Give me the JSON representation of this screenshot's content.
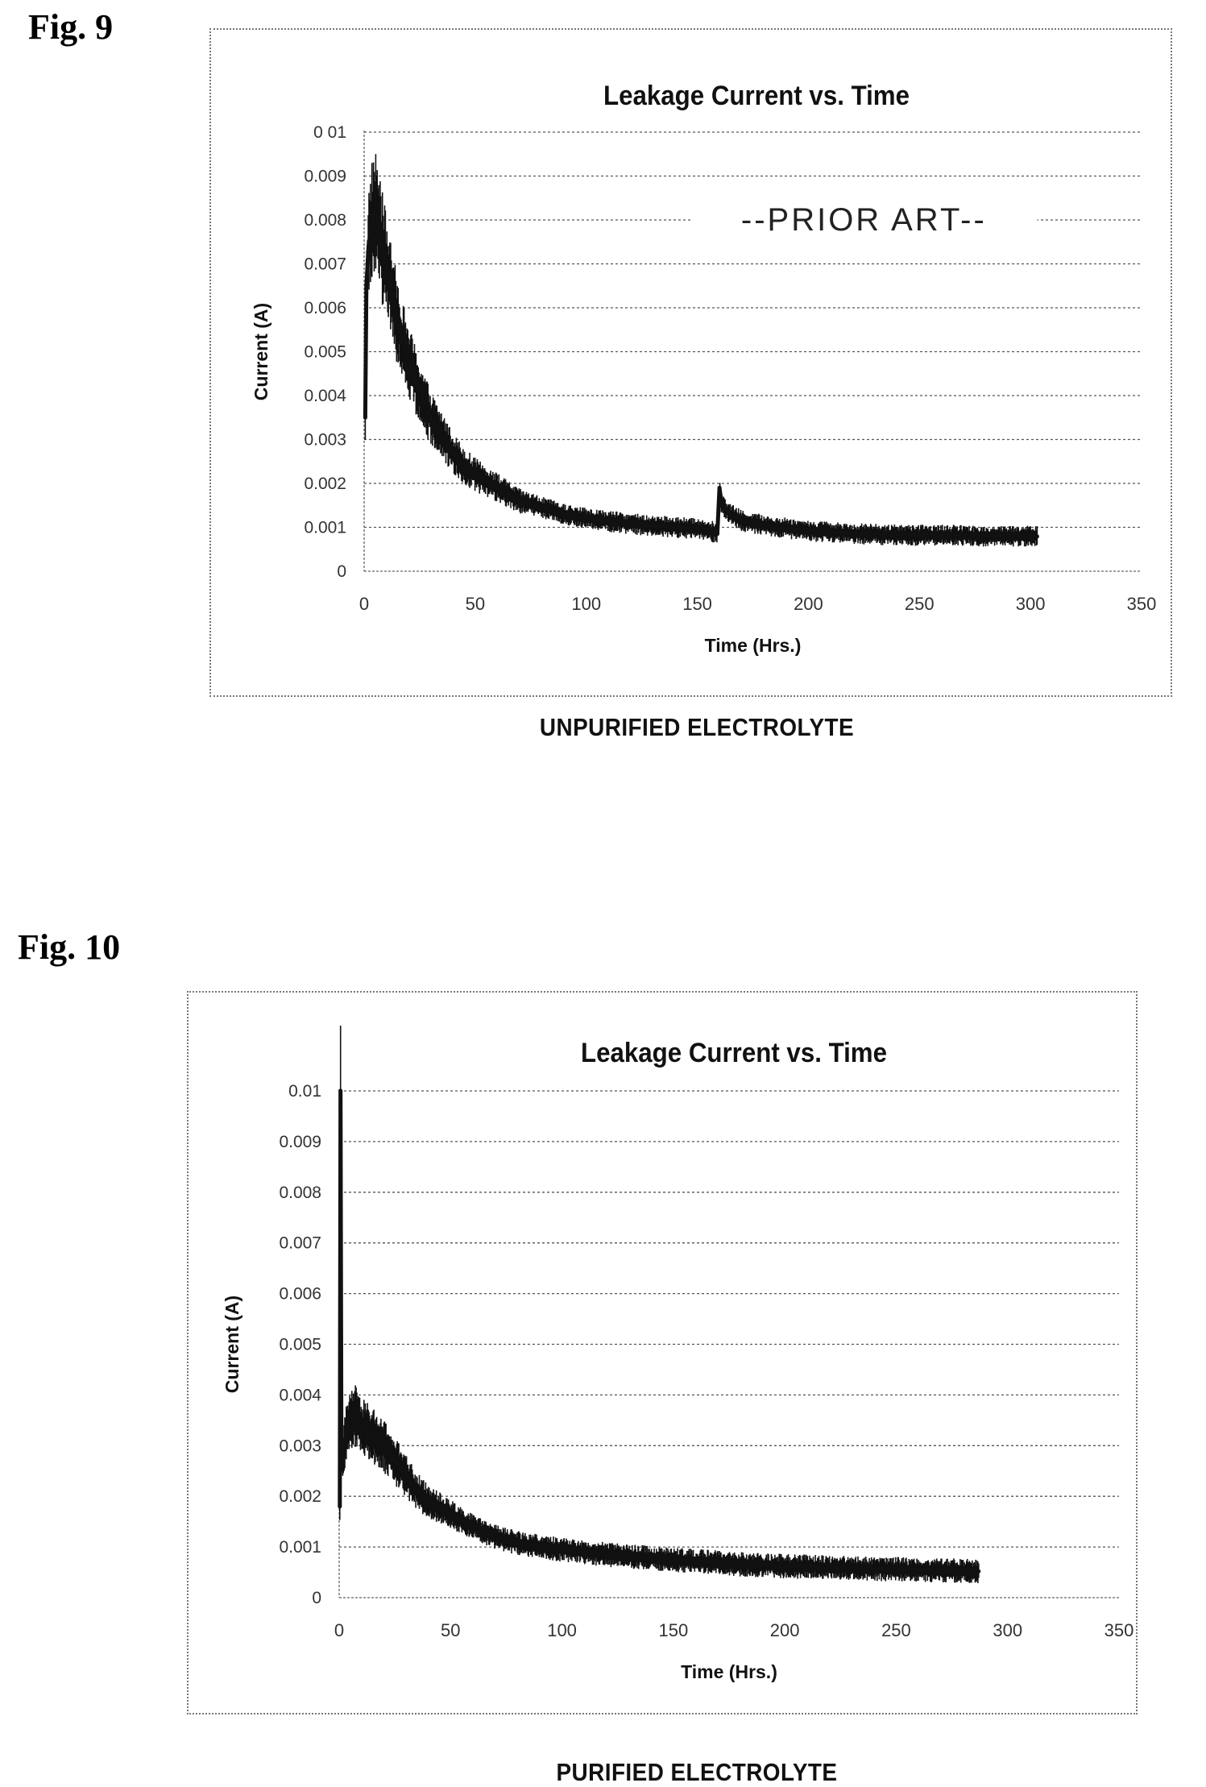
{
  "figures": [
    {
      "label": "Fig. 9",
      "caption": "UNPURIFIED ELECTROLYTE"
    },
    {
      "label": "Fig. 10",
      "caption": "PURIFIED ELECTROLYTE"
    }
  ],
  "chart_data": [
    {
      "type": "line",
      "title": "Leakage Current vs. Time",
      "xlabel": "Time (Hrs.)",
      "ylabel": "Current (A)",
      "xlim": [
        0,
        350
      ],
      "ylim": [
        0,
        0.01
      ],
      "x_ticks": [
        "0",
        "50",
        "100",
        "150",
        "200",
        "250",
        "300",
        "350"
      ],
      "y_ticks": [
        "0",
        "0.001",
        "0.002",
        "0.003",
        "0.004",
        "0.005",
        "0.006",
        "0.007",
        "0.008",
        "0.009",
        "0 01"
      ],
      "grid": "horizontal dotted",
      "legend": "none",
      "annotation": "--PRIOR ART--",
      "color": "#111111",
      "series": [
        {
          "x": [
            0.5,
            1,
            2,
            3,
            4,
            5,
            6,
            7,
            8,
            10,
            12,
            15,
            18,
            20,
            25,
            30,
            35,
            40,
            45,
            50,
            60,
            70,
            80,
            90,
            100,
            120,
            140,
            155,
            159,
            160,
            161,
            165,
            170,
            180,
            200,
            220,
            240,
            260,
            280,
            300,
            303
          ],
          "y": [
            0.0035,
            0.0065,
            0.0074,
            0.0078,
            0.0081,
            0.0082,
            0.008,
            0.0077,
            0.0074,
            0.0069,
            0.0064,
            0.0057,
            0.0051,
            0.0048,
            0.0041,
            0.0035,
            0.0031,
            0.0027,
            0.0024,
            0.0022,
            0.0019,
            0.0016,
            0.00145,
            0.0013,
            0.0012,
            0.00108,
            0.001,
            0.00095,
            0.00085,
            0.0019,
            0.0015,
            0.0013,
            0.00115,
            0.00105,
            0.00092,
            0.00086,
            0.00082,
            0.00082,
            0.0008,
            0.0008,
            0.00079
          ]
        }
      ]
    },
    {
      "type": "line",
      "title": "Leakage Current vs. Time",
      "xlabel": "Time (Hrs.)",
      "ylabel": "Current (A)",
      "xlim": [
        0,
        350
      ],
      "ylim": [
        0,
        0.01
      ],
      "x_ticks": [
        "0",
        "50",
        "100",
        "150",
        "200",
        "250",
        "300",
        "350"
      ],
      "y_ticks": [
        "0",
        "0.001",
        "0.002",
        "0.003",
        "0.004",
        "0.005",
        "0.006",
        "0.007",
        "0.008",
        "0.009",
        "0.01"
      ],
      "grid": "horizontal dotted",
      "legend": "none",
      "color": "#111111",
      "series": [
        {
          "x": [
            0.3,
            0.6,
            1,
            2,
            3,
            5,
            7,
            9,
            12,
            15,
            20,
            25,
            30,
            35,
            40,
            50,
            60,
            70,
            80,
            90,
            100,
            120,
            140,
            160,
            180,
            200,
            220,
            240,
            260,
            280,
            287
          ],
          "y": [
            0.0018,
            0.01,
            0.0026,
            0.0029,
            0.0032,
            0.0035,
            0.0036,
            0.0034,
            0.0033,
            0.0032,
            0.003,
            0.0027,
            0.0024,
            0.0021,
            0.0019,
            0.00165,
            0.0014,
            0.0012,
            0.00108,
            0.001,
            0.00095,
            0.00085,
            0.00078,
            0.00072,
            0.00066,
            0.00062,
            0.0006,
            0.00057,
            0.00055,
            0.00053,
            0.00052
          ]
        }
      ]
    }
  ]
}
